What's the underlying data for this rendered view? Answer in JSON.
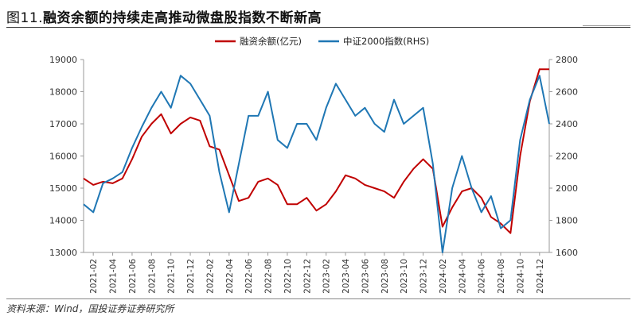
{
  "figure": {
    "prefix": "图11.",
    "title": "融资余额的持续走高推动微盘股指数不断新高",
    "source": "资料来源：Wind，国投证券证券研究所"
  },
  "chart_data": {
    "type": "line",
    "x_ticks": [
      "2021-02",
      "2021-04",
      "2021-06",
      "2021-08",
      "2021-10",
      "2021-12",
      "2022-02",
      "2022-04",
      "2022-06",
      "2022-08",
      "2022-10",
      "2022-12",
      "2023-02",
      "2023-04",
      "2023-06",
      "2023-08",
      "2023-10",
      "2023-12",
      "2024-02",
      "2024-04",
      "2024-06",
      "2024-08",
      "2024-10",
      "2024-12"
    ],
    "y_left": {
      "min": 13000,
      "max": 19000,
      "ticks": [
        13000,
        14000,
        15000,
        16000,
        17000,
        18000,
        19000
      ]
    },
    "y_right": {
      "min": 1600,
      "max": 2800,
      "ticks": [
        1600,
        1800,
        2000,
        2200,
        2400,
        2600,
        2800
      ]
    },
    "legend_position": "top-center",
    "grid": false,
    "series": [
      {
        "name": "融资余额(亿元)",
        "axis": "left",
        "color": "#c00000",
        "x": [
          "2021-01",
          "2021-02",
          "2021-03",
          "2021-04",
          "2021-05",
          "2021-06",
          "2021-07",
          "2021-08",
          "2021-09",
          "2021-10",
          "2021-11",
          "2021-12",
          "2022-01",
          "2022-02",
          "2022-03",
          "2022-04",
          "2022-05",
          "2022-06",
          "2022-07",
          "2022-08",
          "2022-09",
          "2022-10",
          "2022-11",
          "2022-12",
          "2023-01",
          "2023-02",
          "2023-03",
          "2023-04",
          "2023-05",
          "2023-06",
          "2023-07",
          "2023-08",
          "2023-09",
          "2023-10",
          "2023-11",
          "2023-12",
          "2024-01",
          "2024-02",
          "2024-03",
          "2024-04",
          "2024-05",
          "2024-06",
          "2024-07",
          "2024-08",
          "2024-09",
          "2024-10",
          "2024-11",
          "2024-12",
          "2025-01"
        ],
        "values": [
          15300,
          15100,
          15200,
          15150,
          15300,
          15900,
          16600,
          17000,
          17300,
          16700,
          17000,
          17200,
          17100,
          16300,
          16200,
          15400,
          14600,
          14700,
          15200,
          15300,
          15100,
          14500,
          14500,
          14700,
          14300,
          14500,
          14900,
          15400,
          15300,
          15100,
          15000,
          14900,
          14700,
          15200,
          15600,
          15900,
          15600,
          13800,
          14400,
          14900,
          15000,
          14700,
          14100,
          13900,
          13600,
          16000,
          17700,
          18700,
          18700
        ]
      },
      {
        "name": "中证2000指数(RHS)",
        "axis": "right",
        "color": "#1f77b4",
        "x": [
          "2021-01",
          "2021-02",
          "2021-03",
          "2021-04",
          "2021-05",
          "2021-06",
          "2021-07",
          "2021-08",
          "2021-09",
          "2021-10",
          "2021-11",
          "2021-12",
          "2022-01",
          "2022-02",
          "2022-03",
          "2022-04",
          "2022-05",
          "2022-06",
          "2022-07",
          "2022-08",
          "2022-09",
          "2022-10",
          "2022-11",
          "2022-12",
          "2023-01",
          "2023-02",
          "2023-03",
          "2023-04",
          "2023-05",
          "2023-06",
          "2023-07",
          "2023-08",
          "2023-09",
          "2023-10",
          "2023-11",
          "2023-12",
          "2024-01",
          "2024-02",
          "2024-03",
          "2024-04",
          "2024-05",
          "2024-06",
          "2024-07",
          "2024-08",
          "2024-09",
          "2024-10",
          "2024-11",
          "2024-12",
          "2025-01"
        ],
        "values": [
          1900,
          1850,
          2030,
          2060,
          2100,
          2250,
          2380,
          2500,
          2600,
          2500,
          2700,
          2650,
          2550,
          2450,
          2100,
          1850,
          2150,
          2450,
          2450,
          2600,
          2300,
          2250,
          2400,
          2400,
          2300,
          2500,
          2650,
          2550,
          2450,
          2500,
          2400,
          2350,
          2550,
          2400,
          2450,
          2500,
          2150,
          1600,
          2000,
          2200,
          2000,
          1850,
          1950,
          1750,
          1800,
          2300,
          2550,
          2700,
          2400
        ]
      }
    ]
  }
}
